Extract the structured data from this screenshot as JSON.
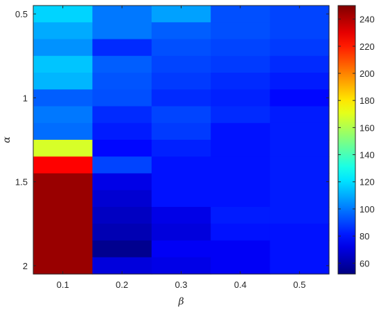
{
  "chart_data": {
    "type": "heatmap",
    "xlabel": "β",
    "ylabel": "α",
    "x": [
      0.1,
      0.2,
      0.3,
      0.4,
      0.5
    ],
    "y": [
      0.5,
      0.6,
      0.7,
      0.8,
      0.9,
      1.0,
      1.1,
      1.2,
      1.3,
      1.4,
      1.5,
      1.6,
      1.7,
      1.8,
      1.9,
      2.0
    ],
    "x_tick_labels": [
      "0.1",
      "0.2",
      "0.3",
      "0.4",
      "0.5"
    ],
    "y_tick_labels": [
      "0.5",
      "1",
      "1.5",
      "2"
    ],
    "y_direction": "top-to-bottom",
    "values": [
      [
        118,
        100,
        108,
        92,
        90
      ],
      [
        110,
        100,
        95,
        92,
        90
      ],
      [
        105,
        85,
        92,
        90,
        88
      ],
      [
        115,
        95,
        90,
        88,
        85
      ],
      [
        112,
        93,
        88,
        85,
        82
      ],
      [
        95,
        92,
        85,
        83,
        78
      ],
      [
        100,
        85,
        90,
        85,
        82
      ],
      [
        98,
        82,
        88,
        80,
        82
      ],
      [
        168,
        78,
        83,
        80,
        82
      ],
      [
        225,
        90,
        80,
        80,
        82
      ],
      [
        245,
        72,
        80,
        80,
        82
      ],
      [
        245,
        68,
        80,
        80,
        82
      ],
      [
        245,
        65,
        72,
        82,
        82
      ],
      [
        245,
        62,
        70,
        80,
        80
      ],
      [
        245,
        55,
        75,
        75,
        80
      ],
      [
        245,
        70,
        72,
        75,
        80
      ]
    ],
    "colorbar": {
      "range": [
        52,
        250
      ],
      "colormap": "jet",
      "tick_values": [
        60,
        80,
        100,
        120,
        140,
        160,
        180,
        200,
        220,
        240
      ],
      "tick_labels": [
        "60",
        "80",
        "100",
        "120",
        "140",
        "160",
        "180",
        "200",
        "220",
        "240"
      ]
    },
    "grid": false
  }
}
